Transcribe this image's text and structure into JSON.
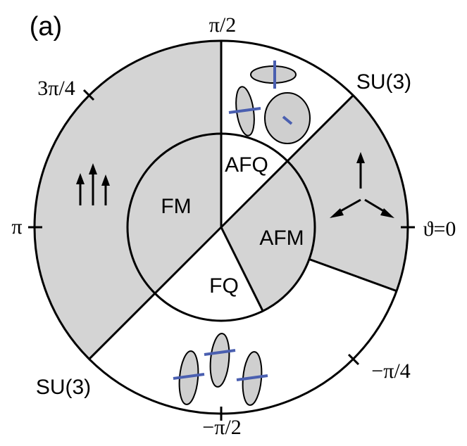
{
  "panel_label": "(a)",
  "angle_labels": {
    "top": "π/2",
    "upper_left": "3π/4",
    "left": "π",
    "right": "ϑ=0",
    "lower_right": "−π/4",
    "bottom": "−π/2"
  },
  "boundary_labels": {
    "upper_right": "SU(3)",
    "lower_left": "SU(3)"
  },
  "phases": {
    "fm": "FM",
    "afq": "AFQ",
    "afm": "AFM",
    "fq": "FQ"
  }
}
